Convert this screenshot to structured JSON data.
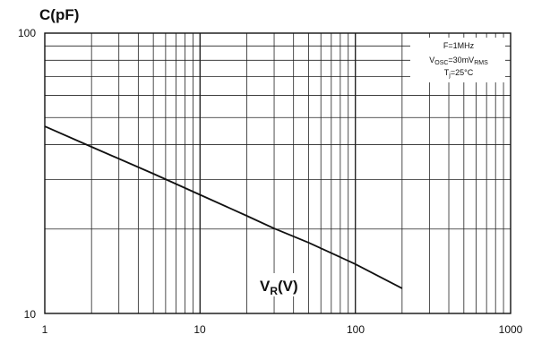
{
  "chart_data": {
    "type": "line",
    "title": "",
    "ylabel": "C(pF)",
    "xlabel": "V",
    "xlabel_sub": "R",
    "xlabel_suffix": "(V)",
    "xscale": "log",
    "yscale": "log",
    "xlim": [
      1,
      1000
    ],
    "ylim": [
      10,
      100
    ],
    "grid": true,
    "x_ticks": [
      "1",
      "10",
      "100",
      "1000"
    ],
    "y_ticks": [
      "100",
      "10"
    ],
    "series": [
      {
        "x": [
          1,
          2,
          5,
          10,
          20,
          30,
          50,
          100,
          200
        ],
        "y": [
          46.5,
          39.3,
          31.5,
          26.5,
          22.3,
          20.1,
          17.9,
          15.0,
          12.3
        ]
      }
    ],
    "annotation": {
      "line1": "F=1MHz",
      "line2_main": "V",
      "line2_sub1": "OSC",
      "line2_mid": "=30mV",
      "line2_sub2": "RMS",
      "line3_main": "T",
      "line3_sub": "j",
      "line3_rest": "=25°C"
    }
  }
}
